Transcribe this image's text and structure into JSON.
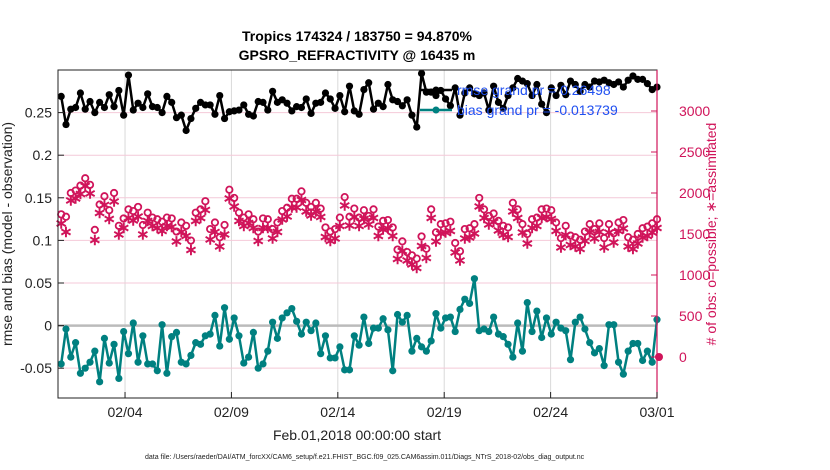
{
  "chart_data": {
    "type": "line",
    "title": [
      "Tropics 174324 / 183750 = 94.870%",
      "GPSRO_REFRACTIVITY @ 16435 m"
    ],
    "xlabel": "Feb.01,2018 00:00:00 start",
    "ylabel": "rmse and bias (model - observation)",
    "y2label": "# of obs: o=possible; ∗=assimilated",
    "footer": "data file: /Users/raeder/DAI/ATM_forcXX/CAM6_setup/f.e21.FHIST_BGC.f09_025.CAM6assim.011/Diags_NTrS_2018-02/obs_diag_output.nc",
    "x_ticks": [
      {
        "day": 4,
        "label": "02/04"
      },
      {
        "day": 9,
        "label": "02/09"
      },
      {
        "day": 14,
        "label": "02/14"
      },
      {
        "day": 19,
        "label": "02/19"
      },
      {
        "day": 24,
        "label": "02/24"
      },
      {
        "day": 29,
        "label": "03/01"
      }
    ],
    "xlim": [
      0.85,
      29
    ],
    "ylim": [
      -0.085,
      0.3
    ],
    "y_ticks": [
      "-0.05",
      "0",
      "0.05",
      "0.1",
      "0.15",
      "0.2",
      "0.25"
    ],
    "y2lim": [
      -500,
      3500
    ],
    "y2_ticks": [
      "0",
      "500",
      "1000",
      "1500",
      "2000",
      "2500",
      "3000"
    ],
    "grid": true,
    "legend": {
      "position": "top-right",
      "entries": [
        {
          "label": "rmse grand pr = 0.26498",
          "color": "#000000"
        },
        {
          "label": "bias grand pr = -0.013739",
          "color": "#008080"
        }
      ]
    },
    "series": [
      {
        "name": "rmse",
        "axis": "left",
        "color": "#000000",
        "values": [
          0.269,
          0.236,
          0.254,
          0.256,
          0.273,
          0.254,
          0.263,
          0.25,
          0.262,
          0.256,
          0.271,
          0.257,
          0.276,
          0.247,
          0.294,
          0.253,
          0.261,
          0.256,
          0.272,
          0.257,
          0.256,
          0.25,
          0.269,
          0.262,
          0.244,
          0.247,
          0.229,
          0.243,
          0.255,
          0.262,
          0.259,
          0.259,
          0.248,
          0.27,
          0.243,
          0.251,
          0.252,
          0.253,
          0.259,
          0.248,
          0.246,
          0.263,
          0.262,
          0.253,
          0.275,
          0.262,
          0.265,
          0.261,
          0.252,
          0.257,
          0.256,
          0.266,
          0.249,
          0.261,
          0.262,
          0.273,
          0.266,
          0.255,
          0.27,
          0.251,
          0.281,
          0.252,
          0.248,
          0.277,
          0.285,
          0.254,
          0.261,
          0.257,
          0.283,
          0.265,
          0.263,
          0.258,
          0.265,
          0.247,
          0.233,
          0.296,
          0.274,
          0.274,
          0.27,
          0.276,
          0.266,
          0.258,
          0.279,
          0.247,
          0.273,
          0.279,
          0.272,
          0.27,
          0.273,
          0.253,
          0.281,
          0.262,
          0.255,
          0.27,
          0.279,
          0.29,
          0.287,
          0.284,
          0.27,
          0.283,
          0.26,
          0.25,
          0.279,
          0.27,
          0.282,
          0.271,
          0.287,
          0.283,
          0.275,
          0.283,
          0.28,
          0.287,
          0.286,
          0.288,
          0.285,
          0.283,
          0.286,
          0.28,
          0.288,
          0.293,
          0.289,
          0.289,
          0.284,
          0.277,
          0.28
        ]
      },
      {
        "name": "bias",
        "axis": "left",
        "color": "#008080",
        "values": [
          -0.045,
          -0.004,
          -0.037,
          -0.02,
          -0.056,
          -0.05,
          -0.043,
          -0.03,
          -0.066,
          -0.015,
          -0.044,
          -0.022,
          -0.062,
          -0.007,
          -0.033,
          0.003,
          -0.043,
          -0.012,
          -0.045,
          -0.045,
          -0.053,
          0.001,
          -0.056,
          -0.013,
          -0.008,
          -0.043,
          -0.045,
          -0.035,
          -0.02,
          -0.022,
          -0.012,
          -0.01,
          0.012,
          -0.024,
          0.021,
          -0.016,
          0.009,
          -0.012,
          -0.044,
          -0.037,
          -0.008,
          -0.05,
          -0.045,
          -0.03,
          0.004,
          -0.015,
          0.009,
          0.015,
          0.02,
          0.005,
          -0.01,
          0.004,
          -0.006,
          0.003,
          -0.033,
          -0.012,
          -0.038,
          -0.038,
          -0.025,
          -0.052,
          -0.052,
          -0.012,
          -0.023,
          0.01,
          -0.021,
          -0.003,
          -0.003,
          0.008,
          -0.005,
          -0.053,
          0.013,
          0.004,
          0.012,
          -0.03,
          -0.015,
          -0.025,
          -0.03,
          -0.018,
          0.014,
          -0.003,
          0.009,
          0.01,
          -0.007,
          0.019,
          0.031,
          0.026,
          0.055,
          -0.006,
          -0.004,
          -0.007,
          0.01,
          -0.01,
          -0.013,
          -0.022,
          -0.037,
          0.003,
          -0.03,
          0.027,
          -0.007,
          0.017,
          -0.014,
          0.009,
          -0.01,
          0.004,
          -0.003,
          -0.006,
          -0.04,
          0.004,
          0.01,
          -0.004,
          -0.02,
          -0.032,
          -0.027,
          -0.047,
          0.001,
          0.001,
          -0.043,
          -0.057,
          -0.03,
          -0.021,
          -0.021,
          -0.041,
          -0.03,
          -0.043,
          0.007
        ]
      },
      {
        "name": "possible",
        "axis": "right",
        "color": "#d0145a",
        "marker": "o",
        "values": [
          1740,
          1710,
          2000,
          2030,
          2090,
          2180,
          2100,
          1550,
          1860,
          1960,
          1790,
          2000,
          1600,
          1690,
          1800,
          1780,
          1830,
          1610,
          1760,
          1700,
          1680,
          1650,
          1700,
          1690,
          1530,
          1640,
          1600,
          1420,
          1760,
          1800,
          1900,
          1560,
          1640,
          1460,
          1610,
          2040,
          1940,
          1760,
          1700,
          1740,
          1680,
          1530,
          1690,
          1680,
          1560,
          1640,
          1780,
          1820,
          1930,
          1930,
          2020,
          1880,
          1830,
          1880,
          1810,
          1580,
          1530,
          1560,
          1700,
          1950,
          1710,
          1810,
          1700,
          1790,
          1720,
          1800,
          1590,
          1660,
          1670,
          1580,
          1310,
          1410,
          1280,
          1240,
          1200,
          1470,
          1320,
          1800,
          1520,
          1620,
          1630,
          1650,
          1390,
          1290,
          1560,
          1570,
          1620,
          1940,
          1800,
          1720,
          1750,
          1660,
          1600,
          1580,
          1880,
          1800,
          1620,
          1500,
          1680,
          1700,
          1800,
          1810,
          1790,
          1640,
          1450,
          1600,
          1480,
          1460,
          1430,
          1530,
          1620,
          1560,
          1630,
          1450,
          1620,
          1510,
          1640,
          1670,
          1460,
          1430,
          1500,
          1570,
          1590,
          1630,
          1680
        ]
      },
      {
        "name": "assimilated",
        "axis": "right",
        "color": "#d0145a",
        "marker": "*",
        "values": [
          1650,
          1550,
          1930,
          1960,
          2010,
          2110,
          2020,
          1450,
          1780,
          1880,
          1710,
          1920,
          1520,
          1600,
          1720,
          1690,
          1740,
          1520,
          1680,
          1620,
          1600,
          1560,
          1620,
          1610,
          1430,
          1550,
          1500,
          1330,
          1680,
          1720,
          1820,
          1460,
          1550,
          1370,
          1520,
          1960,
          1860,
          1680,
          1620,
          1660,
          1600,
          1440,
          1600,
          1600,
          1470,
          1550,
          1700,
          1740,
          1850,
          1850,
          1940,
          1800,
          1750,
          1800,
          1730,
          1490,
          1440,
          1470,
          1620,
          1870,
          1630,
          1730,
          1620,
          1710,
          1640,
          1720,
          1500,
          1580,
          1590,
          1500,
          1220,
          1320,
          1200,
          1150,
          1110,
          1380,
          1230,
          1720,
          1430,
          1530,
          1540,
          1560,
          1300,
          1200,
          1470,
          1480,
          1530,
          1860,
          1720,
          1640,
          1670,
          1570,
          1510,
          1490,
          1800,
          1720,
          1540,
          1410,
          1600,
          1620,
          1720,
          1730,
          1710,
          1560,
          1360,
          1510,
          1390,
          1370,
          1340,
          1440,
          1540,
          1470,
          1550,
          1360,
          1540,
          1420,
          1560,
          1590,
          1370,
          1340,
          1410,
          1480,
          1500,
          1540,
          1600
        ]
      }
    ],
    "extra_points": [
      {
        "series": "count-at-end",
        "x_day": 29,
        "y2": 0
      }
    ]
  }
}
